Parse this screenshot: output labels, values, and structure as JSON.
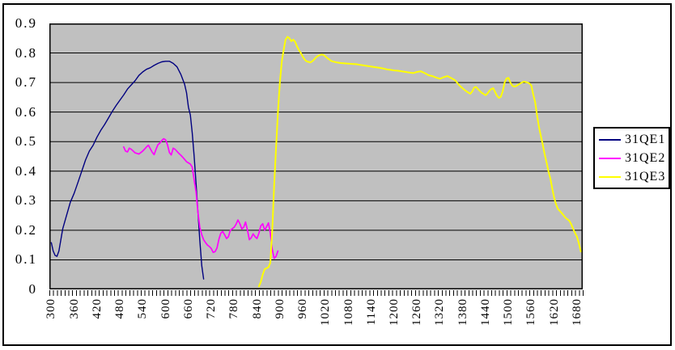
{
  "chart_data": {
    "type": "line",
    "title": "",
    "xlabel": "",
    "ylabel": "",
    "grid": "horizontal",
    "plot_bg_color": "#c0c0c0",
    "grid_color": "#000000",
    "frame_color": "#000000",
    "legend": {
      "position": "right",
      "entries": [
        "31QE1",
        "31QE2",
        "31QE3"
      ]
    },
    "x_axis": {
      "xlim": [
        295,
        1695
      ],
      "minor_tick_step": 10,
      "tick_values": [
        300,
        360,
        420,
        480,
        540,
        600,
        660,
        720,
        780,
        840,
        900,
        960,
        1020,
        1080,
        1140,
        1200,
        1260,
        1320,
        1380,
        1440,
        1500,
        1560,
        1620,
        1680
      ],
      "tick_labels": [
        "300",
        "360",
        "420",
        "480",
        "540",
        "600",
        "660",
        "720",
        "780",
        "840",
        "900",
        "960",
        "1020",
        "1080",
        "1140",
        "1200",
        "1260",
        "1320",
        "1380",
        "1440",
        "1500",
        "1560",
        "1620",
        "1680"
      ]
    },
    "y_axis": {
      "ylim": [
        0,
        0.9
      ],
      "tick_values": [
        0,
        0.1,
        0.2,
        0.3,
        0.4,
        0.5,
        0.6,
        0.7,
        0.8,
        0.9
      ],
      "tick_labels": [
        "0",
        "0.1",
        "0.2",
        "0.3",
        "0.4",
        "0.5",
        "0.6",
        "0.7",
        "0.8",
        "0.9"
      ]
    },
    "series": [
      {
        "name": "31QE1",
        "color": "#000080",
        "points": [
          [
            300,
            0.158
          ],
          [
            305,
            0.13
          ],
          [
            310,
            0.115
          ],
          [
            315,
            0.112
          ],
          [
            320,
            0.13
          ],
          [
            330,
            0.205
          ],
          [
            340,
            0.25
          ],
          [
            350,
            0.295
          ],
          [
            360,
            0.325
          ],
          [
            370,
            0.362
          ],
          [
            380,
            0.4
          ],
          [
            390,
            0.438
          ],
          [
            400,
            0.468
          ],
          [
            410,
            0.488
          ],
          [
            420,
            0.515
          ],
          [
            430,
            0.538
          ],
          [
            440,
            0.558
          ],
          [
            450,
            0.58
          ],
          [
            460,
            0.602
          ],
          [
            470,
            0.622
          ],
          [
            480,
            0.64
          ],
          [
            490,
            0.658
          ],
          [
            500,
            0.678
          ],
          [
            510,
            0.692
          ],
          [
            520,
            0.706
          ],
          [
            530,
            0.724
          ],
          [
            540,
            0.736
          ],
          [
            550,
            0.745
          ],
          [
            560,
            0.75
          ],
          [
            570,
            0.758
          ],
          [
            580,
            0.765
          ],
          [
            590,
            0.77
          ],
          [
            600,
            0.772
          ],
          [
            610,
            0.772
          ],
          [
            620,
            0.765
          ],
          [
            630,
            0.753
          ],
          [
            640,
            0.728
          ],
          [
            650,
            0.694
          ],
          [
            655,
            0.665
          ],
          [
            660,
            0.617
          ],
          [
            665,
            0.59
          ],
          [
            670,
            0.53
          ],
          [
            675,
            0.45
          ],
          [
            680,
            0.36
          ],
          [
            685,
            0.26
          ],
          [
            690,
            0.165
          ],
          [
            695,
            0.08
          ],
          [
            700,
            0.035
          ]
        ]
      },
      {
        "name": "31QE2",
        "color": "#ff00ff",
        "points": [
          [
            490,
            0.482
          ],
          [
            495,
            0.468
          ],
          [
            500,
            0.465
          ],
          [
            505,
            0.478
          ],
          [
            510,
            0.474
          ],
          [
            515,
            0.468
          ],
          [
            520,
            0.462
          ],
          [
            530,
            0.458
          ],
          [
            540,
            0.468
          ],
          [
            545,
            0.475
          ],
          [
            550,
            0.482
          ],
          [
            555,
            0.488
          ],
          [
            560,
            0.476
          ],
          [
            565,
            0.464
          ],
          [
            570,
            0.456
          ],
          [
            575,
            0.474
          ],
          [
            580,
            0.49
          ],
          [
            585,
            0.495
          ],
          [
            590,
            0.504
          ],
          [
            595,
            0.51
          ],
          [
            600,
            0.506
          ],
          [
            605,
            0.49
          ],
          [
            610,
            0.463
          ],
          [
            615,
            0.455
          ],
          [
            620,
            0.478
          ],
          [
            625,
            0.474
          ],
          [
            630,
            0.467
          ],
          [
            635,
            0.46
          ],
          [
            640,
            0.454
          ],
          [
            645,
            0.447
          ],
          [
            650,
            0.44
          ],
          [
            655,
            0.432
          ],
          [
            660,
            0.428
          ],
          [
            665,
            0.424
          ],
          [
            670,
            0.414
          ],
          [
            675,
            0.37
          ],
          [
            680,
            0.33
          ],
          [
            685,
            0.26
          ],
          [
            690,
            0.21
          ],
          [
            695,
            0.185
          ],
          [
            700,
            0.168
          ],
          [
            705,
            0.158
          ],
          [
            710,
            0.15
          ],
          [
            715,
            0.145
          ],
          [
            720,
            0.138
          ],
          [
            725,
            0.125
          ],
          [
            730,
            0.128
          ],
          [
            735,
            0.14
          ],
          [
            740,
            0.17
          ],
          [
            745,
            0.19
          ],
          [
            750,
            0.196
          ],
          [
            755,
            0.185
          ],
          [
            760,
            0.172
          ],
          [
            765,
            0.178
          ],
          [
            770,
            0.2
          ],
          [
            775,
            0.205
          ],
          [
            780,
            0.21
          ],
          [
            785,
            0.22
          ],
          [
            790,
            0.235
          ],
          [
            795,
            0.222
          ],
          [
            800,
            0.205
          ],
          [
            805,
            0.21
          ],
          [
            810,
            0.228
          ],
          [
            815,
            0.2
          ],
          [
            820,
            0.168
          ],
          [
            825,
            0.175
          ],
          [
            830,
            0.188
          ],
          [
            835,
            0.178
          ],
          [
            840,
            0.172
          ],
          [
            845,
            0.19
          ],
          [
            850,
            0.215
          ],
          [
            855,
            0.222
          ],
          [
            860,
            0.2
          ],
          [
            865,
            0.212
          ],
          [
            870,
            0.225
          ],
          [
            875,
            0.19
          ],
          [
            880,
            0.135
          ],
          [
            885,
            0.105
          ],
          [
            890,
            0.112
          ],
          [
            895,
            0.13
          ]
        ]
      },
      {
        "name": "31QE3",
        "color": "#ffff00",
        "points": [
          [
            845,
            0.01
          ],
          [
            850,
            0.025
          ],
          [
            855,
            0.05
          ],
          [
            860,
            0.068
          ],
          [
            865,
            0.072
          ],
          [
            870,
            0.075
          ],
          [
            875,
            0.09
          ],
          [
            880,
            0.2
          ],
          [
            885,
            0.35
          ],
          [
            890,
            0.48
          ],
          [
            895,
            0.6
          ],
          [
            900,
            0.7
          ],
          [
            905,
            0.77
          ],
          [
            910,
            0.81
          ],
          [
            915,
            0.845
          ],
          [
            920,
            0.855
          ],
          [
            925,
            0.85
          ],
          [
            930,
            0.84
          ],
          [
            935,
            0.845
          ],
          [
            940,
            0.838
          ],
          [
            945,
            0.822
          ],
          [
            950,
            0.81
          ],
          [
            955,
            0.8
          ],
          [
            960,
            0.788
          ],
          [
            965,
            0.778
          ],
          [
            970,
            0.772
          ],
          [
            975,
            0.77
          ],
          [
            980,
            0.768
          ],
          [
            985,
            0.772
          ],
          [
            990,
            0.778
          ],
          [
            995,
            0.785
          ],
          [
            1000,
            0.79
          ],
          [
            1005,
            0.793
          ],
          [
            1010,
            0.795
          ],
          [
            1015,
            0.793
          ],
          [
            1020,
            0.788
          ],
          [
            1025,
            0.782
          ],
          [
            1030,
            0.778
          ],
          [
            1035,
            0.773
          ],
          [
            1040,
            0.771
          ],
          [
            1050,
            0.768
          ],
          [
            1060,
            0.766
          ],
          [
            1070,
            0.765
          ],
          [
            1080,
            0.764
          ],
          [
            1090,
            0.763
          ],
          [
            1100,
            0.762
          ],
          [
            1110,
            0.76
          ],
          [
            1120,
            0.758
          ],
          [
            1130,
            0.756
          ],
          [
            1140,
            0.754
          ],
          [
            1150,
            0.752
          ],
          [
            1160,
            0.75
          ],
          [
            1170,
            0.748
          ],
          [
            1180,
            0.745
          ],
          [
            1190,
            0.743
          ],
          [
            1200,
            0.741
          ],
          [
            1210,
            0.74
          ],
          [
            1220,
            0.738
          ],
          [
            1230,
            0.736
          ],
          [
            1240,
            0.734
          ],
          [
            1250,
            0.732
          ],
          [
            1260,
            0.736
          ],
          [
            1270,
            0.738
          ],
          [
            1280,
            0.732
          ],
          [
            1290,
            0.725
          ],
          [
            1300,
            0.722
          ],
          [
            1310,
            0.717
          ],
          [
            1320,
            0.713
          ],
          [
            1330,
            0.718
          ],
          [
            1340,
            0.722
          ],
          [
            1350,
            0.715
          ],
          [
            1360,
            0.708
          ],
          [
            1370,
            0.692
          ],
          [
            1380,
            0.68
          ],
          [
            1390,
            0.67
          ],
          [
            1400,
            0.662
          ],
          [
            1405,
            0.67
          ],
          [
            1410,
            0.683
          ],
          [
            1415,
            0.685
          ],
          [
            1420,
            0.678
          ],
          [
            1430,
            0.665
          ],
          [
            1440,
            0.657
          ],
          [
            1445,
            0.663
          ],
          [
            1450,
            0.672
          ],
          [
            1455,
            0.678
          ],
          [
            1460,
            0.681
          ],
          [
            1465,
            0.668
          ],
          [
            1470,
            0.655
          ],
          [
            1475,
            0.648
          ],
          [
            1480,
            0.652
          ],
          [
            1485,
            0.67
          ],
          [
            1490,
            0.7
          ],
          [
            1495,
            0.714
          ],
          [
            1500,
            0.716
          ],
          [
            1505,
            0.7
          ],
          [
            1510,
            0.69
          ],
          [
            1515,
            0.686
          ],
          [
            1520,
            0.688
          ],
          [
            1525,
            0.692
          ],
          [
            1530,
            0.696
          ],
          [
            1535,
            0.7
          ],
          [
            1540,
            0.703
          ],
          [
            1545,
            0.702
          ],
          [
            1550,
            0.7
          ],
          [
            1555,
            0.697
          ],
          [
            1560,
            0.69
          ],
          [
            1565,
            0.66
          ],
          [
            1570,
            0.634
          ],
          [
            1575,
            0.59
          ],
          [
            1580,
            0.55
          ],
          [
            1585,
            0.52
          ],
          [
            1590,
            0.49
          ],
          [
            1595,
            0.458
          ],
          [
            1600,
            0.43
          ],
          [
            1605,
            0.4
          ],
          [
            1610,
            0.375
          ],
          [
            1615,
            0.342
          ],
          [
            1620,
            0.31
          ],
          [
            1625,
            0.288
          ],
          [
            1630,
            0.272
          ],
          [
            1635,
            0.265
          ],
          [
            1640,
            0.258
          ],
          [
            1645,
            0.25
          ],
          [
            1650,
            0.242
          ],
          [
            1655,
            0.237
          ],
          [
            1660,
            0.232
          ],
          [
            1665,
            0.22
          ],
          [
            1670,
            0.205
          ],
          [
            1675,
            0.19
          ],
          [
            1680,
            0.178
          ],
          [
            1685,
            0.155
          ],
          [
            1690,
            0.128
          ]
        ]
      }
    ]
  }
}
